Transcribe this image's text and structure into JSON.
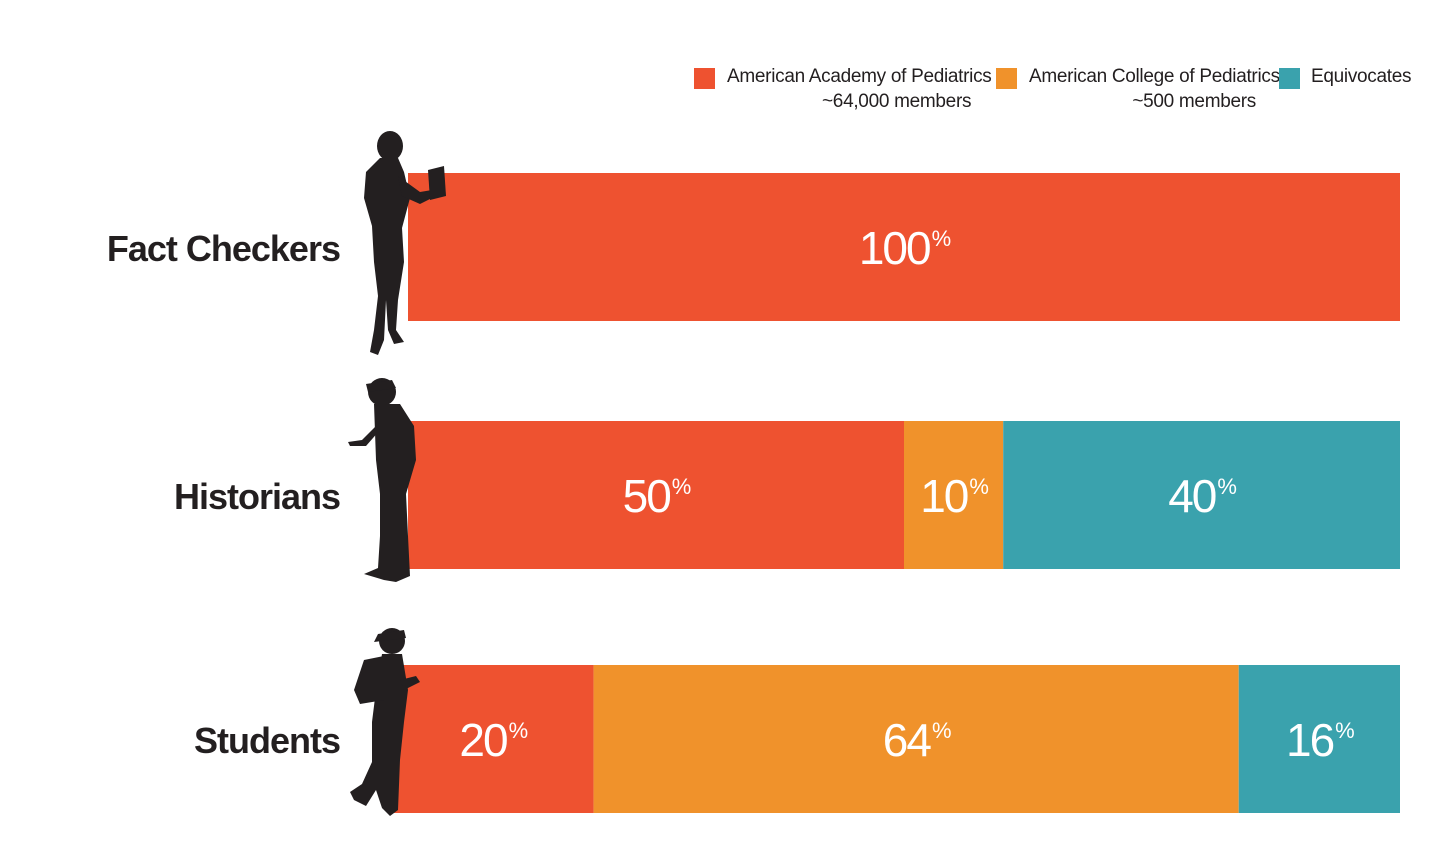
{
  "chart_data": {
    "type": "bar",
    "orientation": "horizontal",
    "stacked": true,
    "categories": [
      "Fact Checkers",
      "Historians",
      "Students"
    ],
    "series": [
      {
        "name": "American Academy of Pediatrics",
        "note": "~64,000 members",
        "color": "#ee5230",
        "values": [
          100,
          50,
          20
        ]
      },
      {
        "name": "American College of Pediatrics",
        "note": "~500 members",
        "color": "#f0922b",
        "values": [
          0,
          10,
          64
        ]
      },
      {
        "name": "Equivocates",
        "note": "",
        "color": "#3aa2ad",
        "values": [
          0,
          40,
          16
        ]
      }
    ],
    "value_suffix": "%",
    "xlim": [
      0,
      100
    ],
    "legend_position": "top-right",
    "grid": false
  },
  "icons": [
    "woman-with-tablet-silhouette-icon",
    "man-with-phone-silhouette-icon",
    "student-with-phone-silhouette-icon"
  ]
}
